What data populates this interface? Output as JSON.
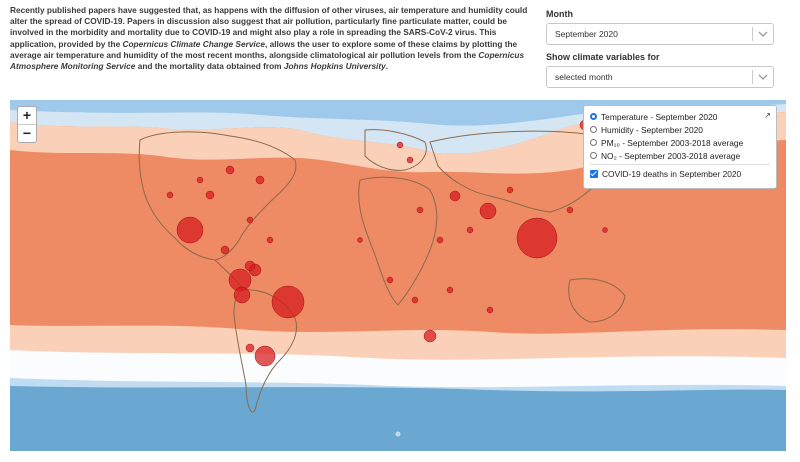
{
  "intro": {
    "p1": "Recently published papers have suggested that, as happens with the diffusion of other viruses, air temperature and humidity could alter the spread of COVID-19. Papers in discussion also suggest that air pollution, particularly fine particulate matter, could be involved in the morbidity and mortality due to COVID-19 and might also play a role in spreading the SARS-CoV-2 virus. This application, provided by the ",
    "em1": "Copernicus Climate Change Service",
    "p2": ", allows the user to explore some of these claims by plotting the average air temperature and humidity of the most recent months, alongside climatological air pollution levels from the ",
    "em2": "Copernicus Atmosphere Monitoring Service",
    "p3": " and the mortality data obtained from ",
    "em3": "Johns Hopkins University",
    "p4": "."
  },
  "controls": {
    "month_label": "Month",
    "month_value": "September 2020",
    "climate_label": "Show climate variables for",
    "climate_value": "selected month"
  },
  "zoom": {
    "in": "+",
    "out": "−"
  },
  "layers": {
    "items": [
      {
        "label": "Temperature - September 2020",
        "selected": true
      },
      {
        "label": "Humidity - September 2020",
        "selected": false
      },
      {
        "label": "PM₁₀ - September 2003-2018 average",
        "selected": false
      },
      {
        "label": "NO₂ - September 2003-2018 average",
        "selected": false
      }
    ],
    "overlay": {
      "label": "COVID-19 deaths in September 2020",
      "checked": true
    }
  },
  "colors": {
    "ocean_warm": "#ee8a64",
    "temperate": "#fbd0b8",
    "cold_light": "#d4e6f4",
    "cold_mid": "#9ec9ea",
    "cold_deep": "#6aa7d1",
    "coast": "#8b6b4a",
    "death_marker": "#d7191c",
    "accent": "#1a73e8"
  }
}
